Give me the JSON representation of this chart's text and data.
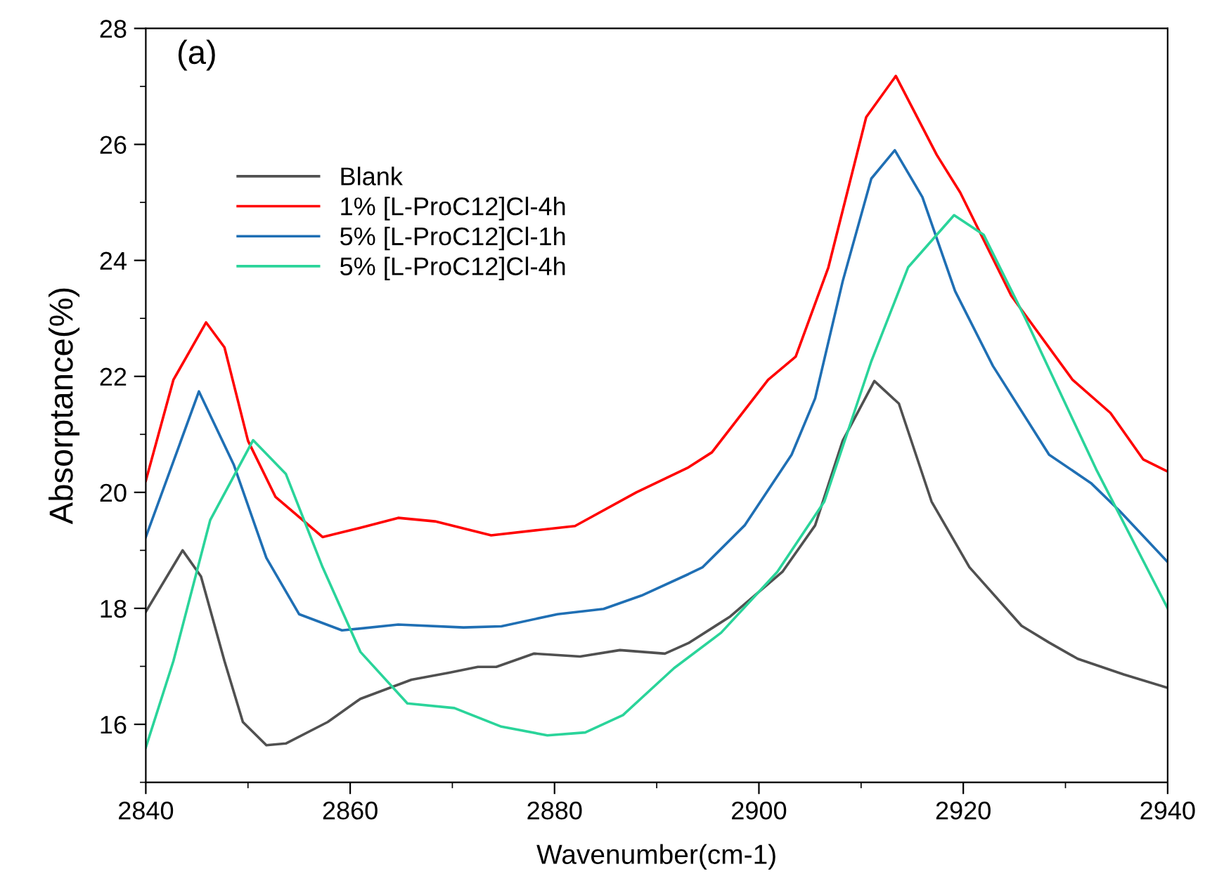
{
  "chart_data": {
    "type": "line",
    "xlabel": "Wavenumber(cm-1)",
    "ylabel": "Absorptance(%)",
    "xlim": [
      2840,
      2940
    ],
    "xticks": [
      2840,
      2860,
      2880,
      2900,
      2920,
      2940
    ],
    "ylim": [
      15,
      28
    ],
    "yticks": [
      16,
      18,
      20,
      22,
      24,
      26,
      28
    ],
    "grid": false,
    "legend": "top left",
    "marker": "none",
    "line_style": "solid",
    "annotations": [
      "(a)"
    ],
    "series": [
      {
        "name": "Blank",
        "color": "#505050",
        "x": [
          2840,
          2843.6,
          2845.4,
          2847.7,
          2849.5,
          2851.8,
          2853.7,
          2857.8,
          2861,
          2866,
          2869.7,
          2872.5,
          2874.3,
          2878,
          2882.5,
          2886.4,
          2890.8,
          2893.1,
          2897.2,
          2902.3,
          2905.5,
          2908.2,
          2911.3,
          2913.7,
          2916.9,
          2920.6,
          2925.7,
          2928.4,
          2931.2,
          2935.7,
          2940
        ],
        "values": [
          17.94,
          19.0,
          18.55,
          17.09,
          16.04,
          15.64,
          15.67,
          16.04,
          16.44,
          16.77,
          16.89,
          16.99,
          16.99,
          17.22,
          17.17,
          17.28,
          17.22,
          17.4,
          17.86,
          18.63,
          19.43,
          20.89,
          21.92,
          21.53,
          19.84,
          18.71,
          17.7,
          17.41,
          17.13,
          16.86,
          16.63
        ]
      },
      {
        "name": "1% [L-ProC12]Cl-4h",
        "color": "#ff0000",
        "x": [
          2840,
          2842.7,
          2845.9,
          2847.7,
          2850,
          2852.7,
          2857.3,
          2861,
          2864.7,
          2868.3,
          2873.8,
          2878.4,
          2882,
          2888,
          2893.1,
          2895.4,
          2900.9,
          2903.6,
          2906.8,
          2910.5,
          2913.4,
          2917.4,
          2919.7,
          2924.7,
          2930.7,
          2934.4,
          2937.6,
          2940
        ],
        "values": [
          20.2,
          21.94,
          22.93,
          22.5,
          20.89,
          19.92,
          19.23,
          19.39,
          19.56,
          19.5,
          19.26,
          19.35,
          19.42,
          20.0,
          20.43,
          20.69,
          21.94,
          22.34,
          23.88,
          26.47,
          27.18,
          25.82,
          25.17,
          23.39,
          21.94,
          21.37,
          20.57,
          20.36
        ]
      },
      {
        "name": "5% [L-ProC12]Cl-1h",
        "color": "#1f6fb4",
        "x": [
          2840,
          2845.2,
          2848.6,
          2851.8,
          2855,
          2859.2,
          2864.7,
          2871.1,
          2874.8,
          2880.3,
          2884.8,
          2888.5,
          2893.1,
          2894.5,
          2898.6,
          2903.2,
          2905.5,
          2908.2,
          2911,
          2913.3,
          2916,
          2919.2,
          2922.9,
          2928.4,
          2932.5,
          2935.3,
          2940
        ],
        "values": [
          19.23,
          21.74,
          20.48,
          18.87,
          17.9,
          17.62,
          17.72,
          17.67,
          17.69,
          17.9,
          17.99,
          18.22,
          18.59,
          18.71,
          19.43,
          20.65,
          21.62,
          23.64,
          25.41,
          25.9,
          25.09,
          23.47,
          22.18,
          20.65,
          20.16,
          19.68,
          18.8
        ]
      },
      {
        "name": "5% [L-ProC12]Cl-4h",
        "color": "#2ad49a",
        "x": [
          2840,
          2842.7,
          2846.3,
          2850.5,
          2853.7,
          2857.3,
          2861,
          2865.6,
          2870.2,
          2874.8,
          2879.3,
          2883,
          2886.7,
          2891.7,
          2896.3,
          2901.8,
          2906.4,
          2911,
          2914.6,
          2919.1,
          2922,
          2926.1,
          2933,
          2940
        ],
        "values": [
          15.6,
          17.09,
          19.52,
          20.9,
          20.32,
          18.71,
          17.25,
          16.36,
          16.28,
          15.96,
          15.81,
          15.86,
          16.16,
          16.97,
          17.58,
          18.63,
          19.84,
          22.26,
          23.88,
          24.78,
          24.44,
          22.99,
          20.4,
          18.0
        ]
      }
    ]
  }
}
